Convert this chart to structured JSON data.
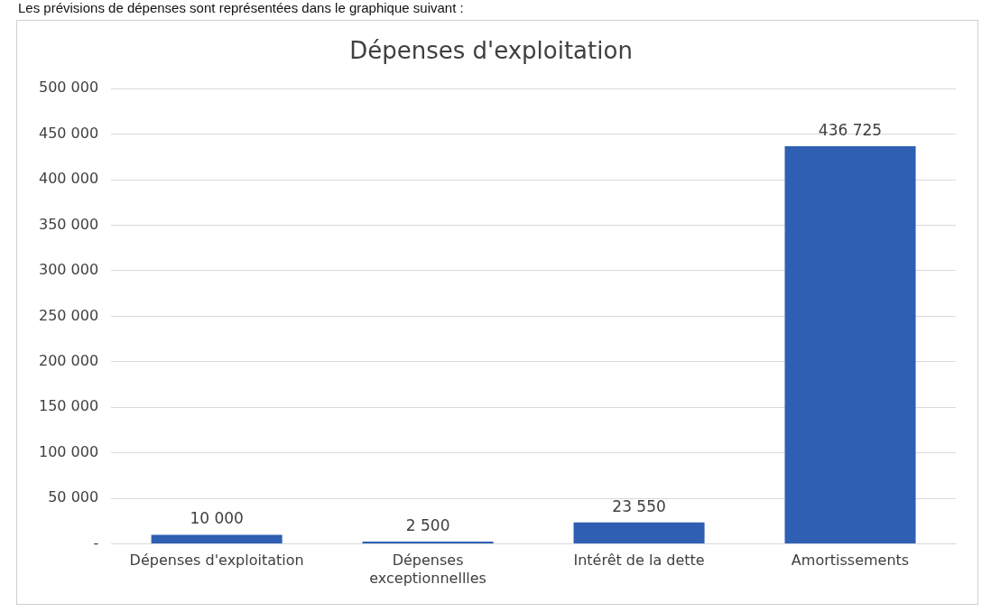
{
  "chart_data": {
    "type": "bar",
    "title": "Dépenses d'exploitation",
    "annotations": [
      "Les prévisions de dépenses sont représentées dans le graphique suivant :"
    ],
    "categories": [
      "Dépenses d'exploitation",
      "Dépenses exceptionnellles",
      "Intérêt de la dette",
      "Amortissements"
    ],
    "values": [
      10000,
      2500,
      23550,
      436725
    ],
    "value_labels": [
      "10 000",
      "2 500",
      "23 550",
      "436 725"
    ],
    "color": "#2f5fb3",
    "ylim": [
      0,
      500000
    ],
    "yticks": [
      {
        "value": 0,
        "label": "-"
      },
      {
        "value": 50000,
        "label": "50 000"
      },
      {
        "value": 100000,
        "label": "100 000"
      },
      {
        "value": 150000,
        "label": "150 000"
      },
      {
        "value": 200000,
        "label": "200 000"
      },
      {
        "value": 250000,
        "label": "250 000"
      },
      {
        "value": 300000,
        "label": "300 000"
      },
      {
        "value": 350000,
        "label": "350 000"
      },
      {
        "value": 400000,
        "label": "400 000"
      },
      {
        "value": 450000,
        "label": "450 000"
      },
      {
        "value": 500000,
        "label": "500 000"
      }
    ],
    "grid": "y",
    "legend": false
  }
}
